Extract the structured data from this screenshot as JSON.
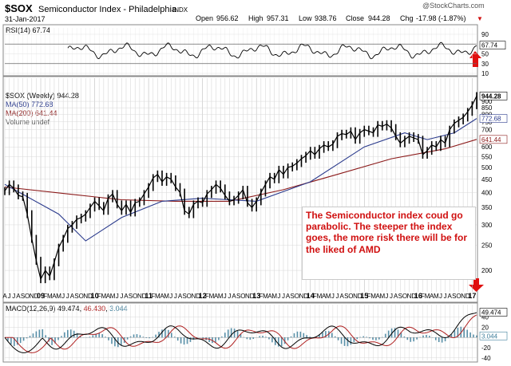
{
  "header": {
    "symbol": "$SOX",
    "name": "Semiconductor Index - Philadelphia",
    "exchange": "INDX",
    "date": "31-Jan-2017",
    "watermark": "@StockCharts.com",
    "ohlc": {
      "open_label": "Open",
      "open": "956.62",
      "high_label": "High",
      "high": "957.31",
      "low_label": "Low",
      "low": "938.76",
      "close_label": "Close",
      "close": "944.28",
      "chg_label": "Chg",
      "chg": "-17.98 (-1.87%)",
      "chg_arrow": "▼"
    }
  },
  "colors": {
    "price": "#000000",
    "ma50": "#2a3a8c",
    "ma200": "#8b1a1a",
    "macd": "#000000",
    "signal": "#b02020",
    "histogram": "#3d7d9a",
    "annotation": "#d01010",
    "grid": "#d8d8d8"
  },
  "chart_data": [
    {
      "type": "line",
      "panel": "RSI",
      "legend": "RSI(14) 67.74",
      "ylim": [
        10,
        90
      ],
      "y_ticks": [
        10,
        30,
        50,
        70,
        90
      ],
      "reference_lines": [
        30,
        70
      ],
      "last_value": "67.74"
    },
    {
      "type": "line",
      "panel": "price",
      "legend_entries": [
        "$SOX (Weekly) 944.28",
        "MA(50) 772.68",
        "MA(200) 641.44",
        "Volume undef"
      ],
      "scale": "log",
      "ylim": [
        170,
        960
      ],
      "y_ticks": [
        200,
        250,
        300,
        350,
        400,
        450,
        500,
        550,
        600,
        650,
        700,
        750,
        800,
        850,
        900
      ],
      "last_labels": [
        "944.28",
        "772.68",
        "641.44"
      ],
      "x_start": "2008-04",
      "x_end": "2017-01",
      "x_tick_labels": [
        "A",
        "J",
        "J",
        "A",
        "S",
        "O",
        "N",
        "D",
        "09",
        "F",
        "M",
        "A",
        "M",
        "J",
        "J",
        "A",
        "S",
        "O",
        "N",
        "D",
        "10",
        "F",
        "M",
        "A",
        "M",
        "J",
        "J",
        "A",
        "S",
        "O",
        "N",
        "D",
        "11",
        "F",
        "M",
        "A",
        "M",
        "J",
        "J",
        "A",
        "S",
        "O",
        "N",
        "D",
        "12",
        "F",
        "M",
        "A",
        "M",
        "J",
        "J",
        "A",
        "S",
        "O",
        "N",
        "D",
        "13",
        "F",
        "M",
        "A",
        "M",
        "J",
        "J",
        "A",
        "S",
        "O",
        "N",
        "D",
        "14",
        "F",
        "M",
        "A",
        "M",
        "J",
        "J",
        "A",
        "S",
        "O",
        "N",
        "D",
        "15",
        "F",
        "M",
        "A",
        "M",
        "J",
        "J",
        "A",
        "S",
        "O",
        "N",
        "D",
        "16",
        "F",
        "M",
        "A",
        "M",
        "J",
        "J",
        "A",
        "S",
        "O",
        "N",
        "D",
        "17"
      ],
      "series": [
        {
          "name": "$SOX (Weekly)",
          "x": [
            "2008-04",
            "2008-05",
            "2008-06",
            "2008-07",
            "2008-08",
            "2008-09",
            "2008-10",
            "2008-11",
            "2008-12",
            "2009-01",
            "2009-02",
            "2009-03",
            "2009-04",
            "2009-05",
            "2009-06",
            "2009-07",
            "2009-08",
            "2009-09",
            "2009-10",
            "2009-11",
            "2009-12",
            "2010-01",
            "2010-02",
            "2010-03",
            "2010-04",
            "2010-05",
            "2010-06",
            "2010-07",
            "2010-08",
            "2010-09",
            "2010-10",
            "2010-11",
            "2010-12",
            "2011-01",
            "2011-02",
            "2011-03",
            "2011-04",
            "2011-05",
            "2011-06",
            "2011-07",
            "2011-08",
            "2011-09",
            "2011-10",
            "2011-11",
            "2011-12",
            "2012-01",
            "2012-02",
            "2012-03",
            "2012-04",
            "2012-05",
            "2012-06",
            "2012-07",
            "2012-08",
            "2012-09",
            "2012-10",
            "2012-11",
            "2012-12",
            "2013-01",
            "2013-02",
            "2013-03",
            "2013-04",
            "2013-05",
            "2013-06",
            "2013-07",
            "2013-08",
            "2013-09",
            "2013-10",
            "2013-11",
            "2013-12",
            "2014-01",
            "2014-02",
            "2014-03",
            "2014-04",
            "2014-05",
            "2014-06",
            "2014-07",
            "2014-08",
            "2014-09",
            "2014-10",
            "2014-11",
            "2014-12",
            "2015-01",
            "2015-02",
            "2015-03",
            "2015-04",
            "2015-05",
            "2015-06",
            "2015-07",
            "2015-08",
            "2015-09",
            "2015-10",
            "2015-11",
            "2015-12",
            "2016-01",
            "2016-02",
            "2016-03",
            "2016-04",
            "2016-05",
            "2016-06",
            "2016-07",
            "2016-08",
            "2016-09",
            "2016-10",
            "2016-11",
            "2016-12",
            "2017-01"
          ],
          "values": [
            405,
            430,
            415,
            390,
            385,
            330,
            265,
            218,
            185,
            200,
            190,
            215,
            245,
            265,
            290,
            300,
            315,
            320,
            330,
            350,
            370,
            355,
            340,
            380,
            395,
            360,
            340,
            360,
            335,
            365,
            370,
            395,
            420,
            455,
            470,
            440,
            460,
            450,
            420,
            400,
            340,
            330,
            360,
            370,
            365,
            395,
            410,
            430,
            415,
            390,
            370,
            375,
            390,
            410,
            365,
            350,
            370,
            400,
            430,
            460,
            450,
            490,
            470,
            500,
            505,
            520,
            540,
            555,
            580,
            560,
            590,
            610,
            600,
            615,
            660,
            675,
            670,
            690,
            640,
            680,
            700,
            690,
            680,
            730,
            720,
            735,
            710,
            660,
            620,
            640,
            660,
            650,
            640,
            560,
            580,
            610,
            600,
            640,
            620,
            700,
            740,
            760,
            780,
            820,
            870,
            944
          ]
        },
        {
          "name": "MA(50)",
          "x": [
            "2008-04",
            "2009-04",
            "2009-10",
            "2010-06",
            "2011-03",
            "2011-12",
            "2012-12",
            "2013-12",
            "2014-12",
            "2015-09",
            "2016-02",
            "2016-08",
            "2017-01"
          ],
          "values": [
            430,
            330,
            260,
            320,
            370,
            380,
            370,
            440,
            600,
            680,
            640,
            680,
            772.68
          ]
        },
        {
          "name": "MA(200)",
          "x": [
            "2008-04",
            "2009-06",
            "2010-06",
            "2011-06",
            "2012-06",
            "2013-06",
            "2014-06",
            "2015-06",
            "2016-06",
            "2017-01"
          ],
          "values": [
            420,
            395,
            375,
            370,
            370,
            410,
            470,
            540,
            590,
            641.44
          ]
        }
      ],
      "annotation": "The Semiconductor index  coud go parabolic. The steeper the index goes, the more risk there will be for the liked of AMD"
    },
    {
      "type": "line",
      "panel": "MACD",
      "legend": "MACD(12,26,9) 49.474, 46.430, 3.044",
      "legend_parts": [
        "MACD(12,26,9) ",
        "49.474",
        ", ",
        "46.430",
        ", ",
        "3.044"
      ],
      "ylim": [
        -45,
        55
      ],
      "y_ticks": [
        40,
        20,
        0,
        -20,
        -40
      ],
      "last_labels": [
        "49.474",
        "3.044"
      ]
    }
  ]
}
